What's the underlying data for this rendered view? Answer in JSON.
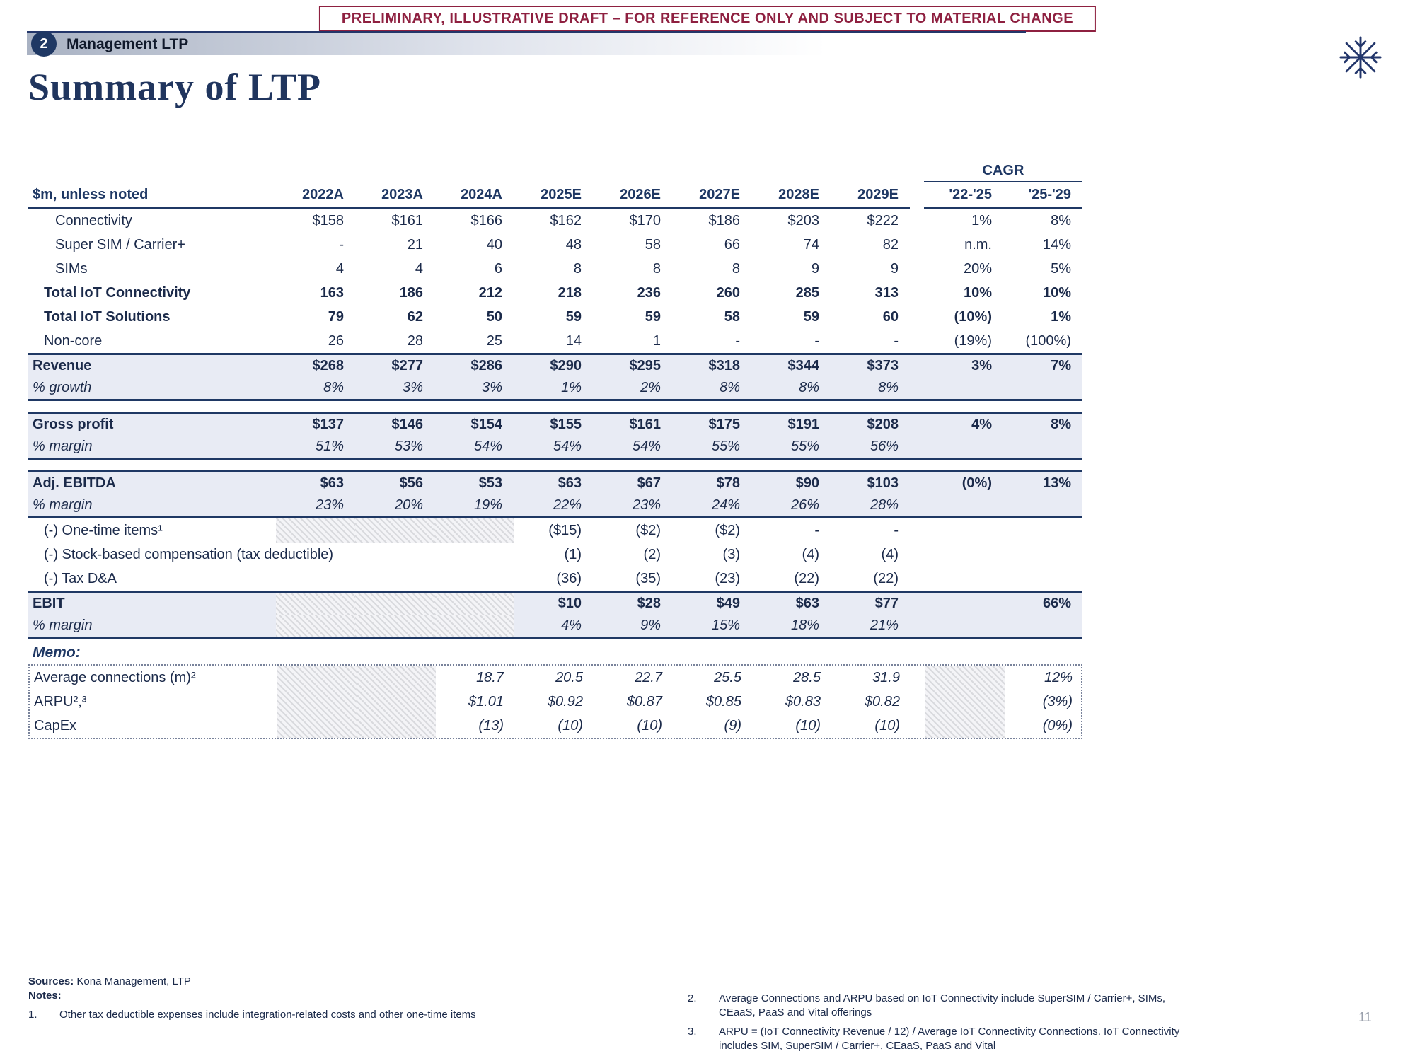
{
  "banner": {
    "text": "PRELIMINARY, ILLUSTRATIVE DRAFT – FOR REFERENCE ONLY AND SUBJECT TO MATERIAL CHANGE"
  },
  "section": {
    "number": "2",
    "label": "Management LTP"
  },
  "title": "Summary of LTP",
  "colors": {
    "navy": "#1f3864",
    "maroon": "#8e2040",
    "band_bg": "#e8ebf4"
  },
  "table": {
    "unit_label": "$m, unless noted",
    "cagr_label": "CAGR",
    "columns": [
      "2022A",
      "2023A",
      "2024A",
      "2025E",
      "2026E",
      "2027E",
      "2028E",
      "2029E",
      "'22-'25",
      "'25-'29"
    ],
    "rows": [
      {
        "label": "Connectivity",
        "indent": 2,
        "values": [
          "$158",
          "$161",
          "$166",
          "$162",
          "$170",
          "$186",
          "$203",
          "$222",
          "1%",
          "8%"
        ]
      },
      {
        "label": "Super SIM / Carrier+",
        "indent": 2,
        "values": [
          "-",
          "21",
          "40",
          "48",
          "58",
          "66",
          "74",
          "82",
          "n.m.",
          "14%"
        ]
      },
      {
        "label": "SIMs",
        "indent": 2,
        "values": [
          "4",
          "4",
          "6",
          "8",
          "8",
          "8",
          "9",
          "9",
          "20%",
          "5%"
        ]
      },
      {
        "label": "Total IoT Connectivity",
        "indent": 1,
        "bold": true,
        "values": [
          "163",
          "186",
          "212",
          "218",
          "236",
          "260",
          "285",
          "313",
          "10%",
          "10%"
        ]
      },
      {
        "label": "Total IoT Solutions",
        "indent": 1,
        "bold": true,
        "values": [
          "79",
          "62",
          "50",
          "59",
          "59",
          "58",
          "59",
          "60",
          "(10%)",
          "1%"
        ]
      },
      {
        "label": "Non-core",
        "indent": 1,
        "values": [
          "26",
          "28",
          "25",
          "14",
          "1",
          "-",
          "-",
          "-",
          "(19%)",
          "(100%)"
        ]
      },
      {
        "label": "Revenue",
        "bold": true,
        "band": "start",
        "values": [
          "$268",
          "$277",
          "$286",
          "$290",
          "$295",
          "$318",
          "$344",
          "$373",
          "3%",
          "7%"
        ]
      },
      {
        "label": "% growth",
        "italic": true,
        "band": "end",
        "values": [
          "8%",
          "3%",
          "3%",
          "1%",
          "2%",
          "8%",
          "8%",
          "8%",
          "",
          ""
        ]
      },
      {
        "gap": true
      },
      {
        "label": "Gross profit",
        "bold": true,
        "band": "start",
        "values": [
          "$137",
          "$146",
          "$154",
          "$155",
          "$161",
          "$175",
          "$191",
          "$208",
          "4%",
          "8%"
        ]
      },
      {
        "label": "% margin",
        "italic": true,
        "band": "end",
        "values": [
          "51%",
          "53%",
          "54%",
          "54%",
          "54%",
          "55%",
          "55%",
          "56%",
          "",
          ""
        ]
      },
      {
        "gap": true
      },
      {
        "label": "Adj. EBITDA",
        "bold": true,
        "band": "start",
        "values": [
          "$63",
          "$56",
          "$53",
          "$63",
          "$67",
          "$78",
          "$90",
          "$103",
          "(0%)",
          "13%"
        ]
      },
      {
        "label": "% margin",
        "italic": true,
        "band": "end",
        "values": [
          "23%",
          "20%",
          "19%",
          "22%",
          "23%",
          "24%",
          "26%",
          "28%",
          "",
          ""
        ]
      },
      {
        "label": "(-) One-time items¹",
        "indent": 1,
        "hatch": [
          0,
          1,
          2
        ],
        "values": [
          "",
          "",
          "",
          "($15)",
          "($2)",
          "($2)",
          "-",
          "-",
          "",
          ""
        ]
      },
      {
        "label": "(-) Stock-based compensation (tax deductible)",
        "indent": 1,
        "values": [
          "",
          "",
          "",
          "(1)",
          "(2)",
          "(3)",
          "(4)",
          "(4)",
          "",
          ""
        ]
      },
      {
        "label": "(-) Tax D&A",
        "indent": 1,
        "values": [
          "",
          "",
          "",
          "(36)",
          "(35)",
          "(23)",
          "(22)",
          "(22)",
          "",
          ""
        ]
      },
      {
        "label": "EBIT",
        "bold": true,
        "band": "start",
        "hatch": [
          0,
          1,
          2
        ],
        "values": [
          "",
          "",
          "",
          "$10",
          "$28",
          "$49",
          "$63",
          "$77",
          "",
          "66%"
        ]
      },
      {
        "label": "% margin",
        "italic": true,
        "band": "end",
        "hatch": [
          0,
          1,
          2
        ],
        "values": [
          "",
          "",
          "",
          "4%",
          "9%",
          "15%",
          "18%",
          "21%",
          "",
          ""
        ]
      }
    ],
    "memo_label": "Memo:",
    "memo_rows": [
      {
        "label": "Average connections (m)²",
        "hatch": [
          0,
          1,
          8
        ],
        "values": [
          "",
          "",
          "18.7",
          "20.5",
          "22.7",
          "25.5",
          "28.5",
          "31.9",
          "",
          "12%"
        ]
      },
      {
        "label": "ARPU²,³",
        "hatch": [
          0,
          1,
          8
        ],
        "values": [
          "",
          "",
          "$1.01",
          "$0.92",
          "$0.87",
          "$0.85",
          "$0.83",
          "$0.82",
          "",
          "(3%)"
        ]
      },
      {
        "label": "CapEx",
        "hatch": [
          0,
          1,
          8
        ],
        "values": [
          "",
          "",
          "(13)",
          "(10)",
          "(10)",
          "(9)",
          "(10)",
          "(10)",
          "",
          "(0%)"
        ]
      }
    ]
  },
  "footer": {
    "sources_label": "Sources:",
    "sources": "Kona Management, LTP",
    "notes_label": "Notes:",
    "notes_left": [
      {
        "num": "1.",
        "text": "Other tax deductible expenses include integration-related costs and other one-time items"
      }
    ],
    "notes_right": [
      {
        "num": "2.",
        "text": "Average Connections and ARPU based on IoT Connectivity include SuperSIM / Carrier+, SIMs, CEaaS, PaaS and Vital offerings"
      },
      {
        "num": "3.",
        "text": "ARPU = (IoT Connectivity Revenue / 12) / Average IoT Connectivity Connections. IoT Connectivity includes SIM, SuperSIM / Carrier+, CEaaS, PaaS and Vital"
      }
    ],
    "page_number": "11"
  }
}
